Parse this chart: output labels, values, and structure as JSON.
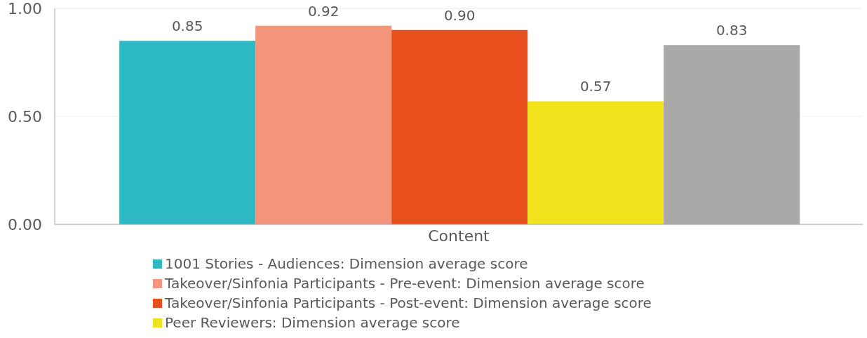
{
  "chart_data": {
    "type": "bar",
    "categories": [
      "Content"
    ],
    "series": [
      {
        "name": "1001 Stories - Audiences: Dimension average score",
        "color": "#2cb8c5",
        "values": [
          0.85
        ],
        "value_labels": [
          "0.85"
        ]
      },
      {
        "name": "Takeover/Sinfonia Participants - Pre-event: Dimension average score",
        "color": "#f2957a",
        "values": [
          0.92
        ],
        "value_labels": [
          "0.92"
        ]
      },
      {
        "name": "Takeover/Sinfonia Participants - Post-event: Dimension average score",
        "color": "#e94f1d",
        "values": [
          0.9
        ],
        "value_labels": [
          "0.90"
        ]
      },
      {
        "name": "Peer Reviewers: Dimension average score",
        "color": "#f0e31c",
        "values": [
          0.57
        ],
        "value_labels": [
          "0.57"
        ]
      },
      {
        "color": "#a9a9a8",
        "values": [
          0.83
        ],
        "value_labels": [
          "0.83"
        ]
      }
    ],
    "ylim": [
      0,
      1
    ],
    "yticks": [
      {
        "value": 0,
        "label": "0.00"
      },
      {
        "value": 0.5,
        "label": "0.50"
      },
      {
        "value": 1,
        "label": "1.00"
      }
    ],
    "grid": "y",
    "legend": "bottom"
  }
}
